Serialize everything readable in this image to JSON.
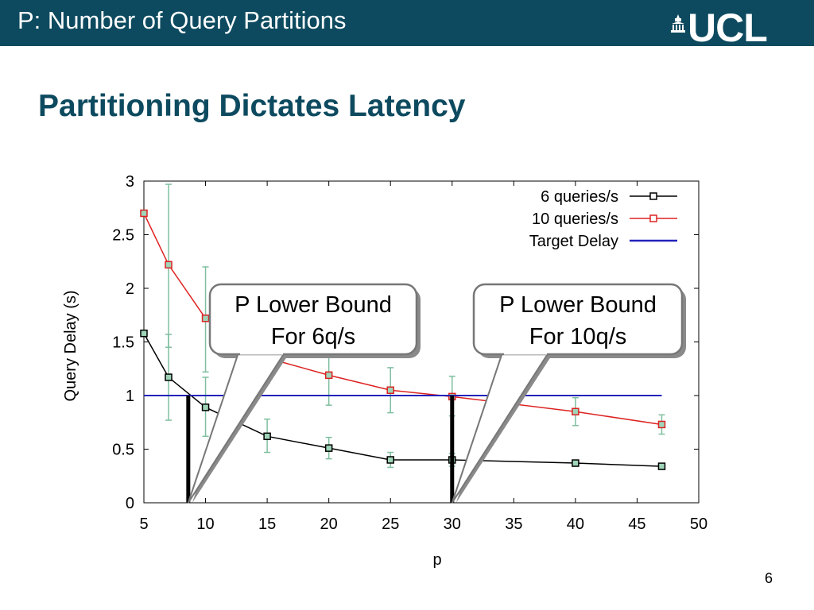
{
  "header": {
    "title": "P: Number of Query Partitions",
    "logo_text": "UCL",
    "logo_icon": "portico-icon"
  },
  "slide": {
    "title": "Partitioning Dictates Latency",
    "page_number": "6"
  },
  "callouts": [
    {
      "line1": "P Lower Bound",
      "line2": "For 6q/s",
      "target_x": 8.6
    },
    {
      "line1": "P Lower Bound",
      "line2": "For 10q/s",
      "target_x": 30
    }
  ],
  "colors": {
    "header_bg": "#0d4a5f",
    "title": "#0d4a5f",
    "six": "#000000",
    "ten": "#dd2222",
    "target": "#2222bb",
    "errorbar": "#7fbf9f"
  },
  "chart_data": {
    "type": "line",
    "title": "",
    "xlabel": "p",
    "ylabel": "Query Delay (s)",
    "xlim": [
      5,
      50
    ],
    "ylim": [
      0,
      3
    ],
    "x_ticks": [
      5,
      10,
      15,
      20,
      25,
      30,
      35,
      40,
      45,
      50
    ],
    "y_ticks": [
      0,
      0.5,
      1,
      1.5,
      2,
      2.5,
      3
    ],
    "y_tick_labels": [
      "0",
      "0.5",
      "1",
      "1.5",
      "2",
      "2.5",
      "3"
    ],
    "grid": false,
    "legend": "top-right",
    "series": [
      {
        "name": "6 queries/s",
        "color": "#000000",
        "marker": "square",
        "points": [
          {
            "x": 5,
            "y": 1.58
          },
          {
            "x": 7,
            "y": 1.17,
            "err": [
              0.77,
              1.57
            ]
          },
          {
            "x": 10,
            "y": 0.89,
            "err": [
              0.62,
              1.17
            ]
          },
          {
            "x": 15,
            "y": 0.62,
            "err": [
              0.47,
              0.78
            ]
          },
          {
            "x": 20,
            "y": 0.51,
            "err": [
              0.41,
              0.61
            ]
          },
          {
            "x": 25,
            "y": 0.4,
            "err": [
              0.33,
              0.47
            ]
          },
          {
            "x": 30,
            "y": 0.4,
            "err": [
              0.34,
              0.46
            ]
          },
          {
            "x": 40,
            "y": 0.37
          },
          {
            "x": 47,
            "y": 0.34
          }
        ]
      },
      {
        "name": "10 queries/s",
        "color": "#dd2222",
        "marker": "square",
        "points": [
          {
            "x": 5,
            "y": 2.7
          },
          {
            "x": 7,
            "y": 2.22,
            "err": [
              1.45,
              2.97
            ]
          },
          {
            "x": 10,
            "y": 1.72,
            "err": [
              1.22,
              2.2
            ]
          },
          {
            "x": 15,
            "y": 1.35,
            "err": [
              1.12,
              1.58
            ]
          },
          {
            "x": 20,
            "y": 1.19,
            "err": [
              0.91,
              1.47
            ]
          },
          {
            "x": 25,
            "y": 1.05,
            "err": [
              0.84,
              1.26
            ]
          },
          {
            "x": 30,
            "y": 0.99,
            "err": [
              0.81,
              1.18
            ]
          },
          {
            "x": 40,
            "y": 0.85,
            "err": [
              0.72,
              0.98
            ]
          },
          {
            "x": 47,
            "y": 0.73,
            "err": [
              0.64,
              0.82
            ]
          }
        ]
      },
      {
        "name": "Target Delay",
        "color": "#2222bb",
        "marker": "none",
        "points": [
          {
            "x": 5,
            "y": 1
          },
          {
            "x": 47,
            "y": 1
          }
        ]
      }
    ],
    "vertical_markers": [
      {
        "x": 8.6,
        "y0": 0,
        "y1": 1
      },
      {
        "x": 30,
        "y0": 0,
        "y1": 1
      }
    ]
  }
}
